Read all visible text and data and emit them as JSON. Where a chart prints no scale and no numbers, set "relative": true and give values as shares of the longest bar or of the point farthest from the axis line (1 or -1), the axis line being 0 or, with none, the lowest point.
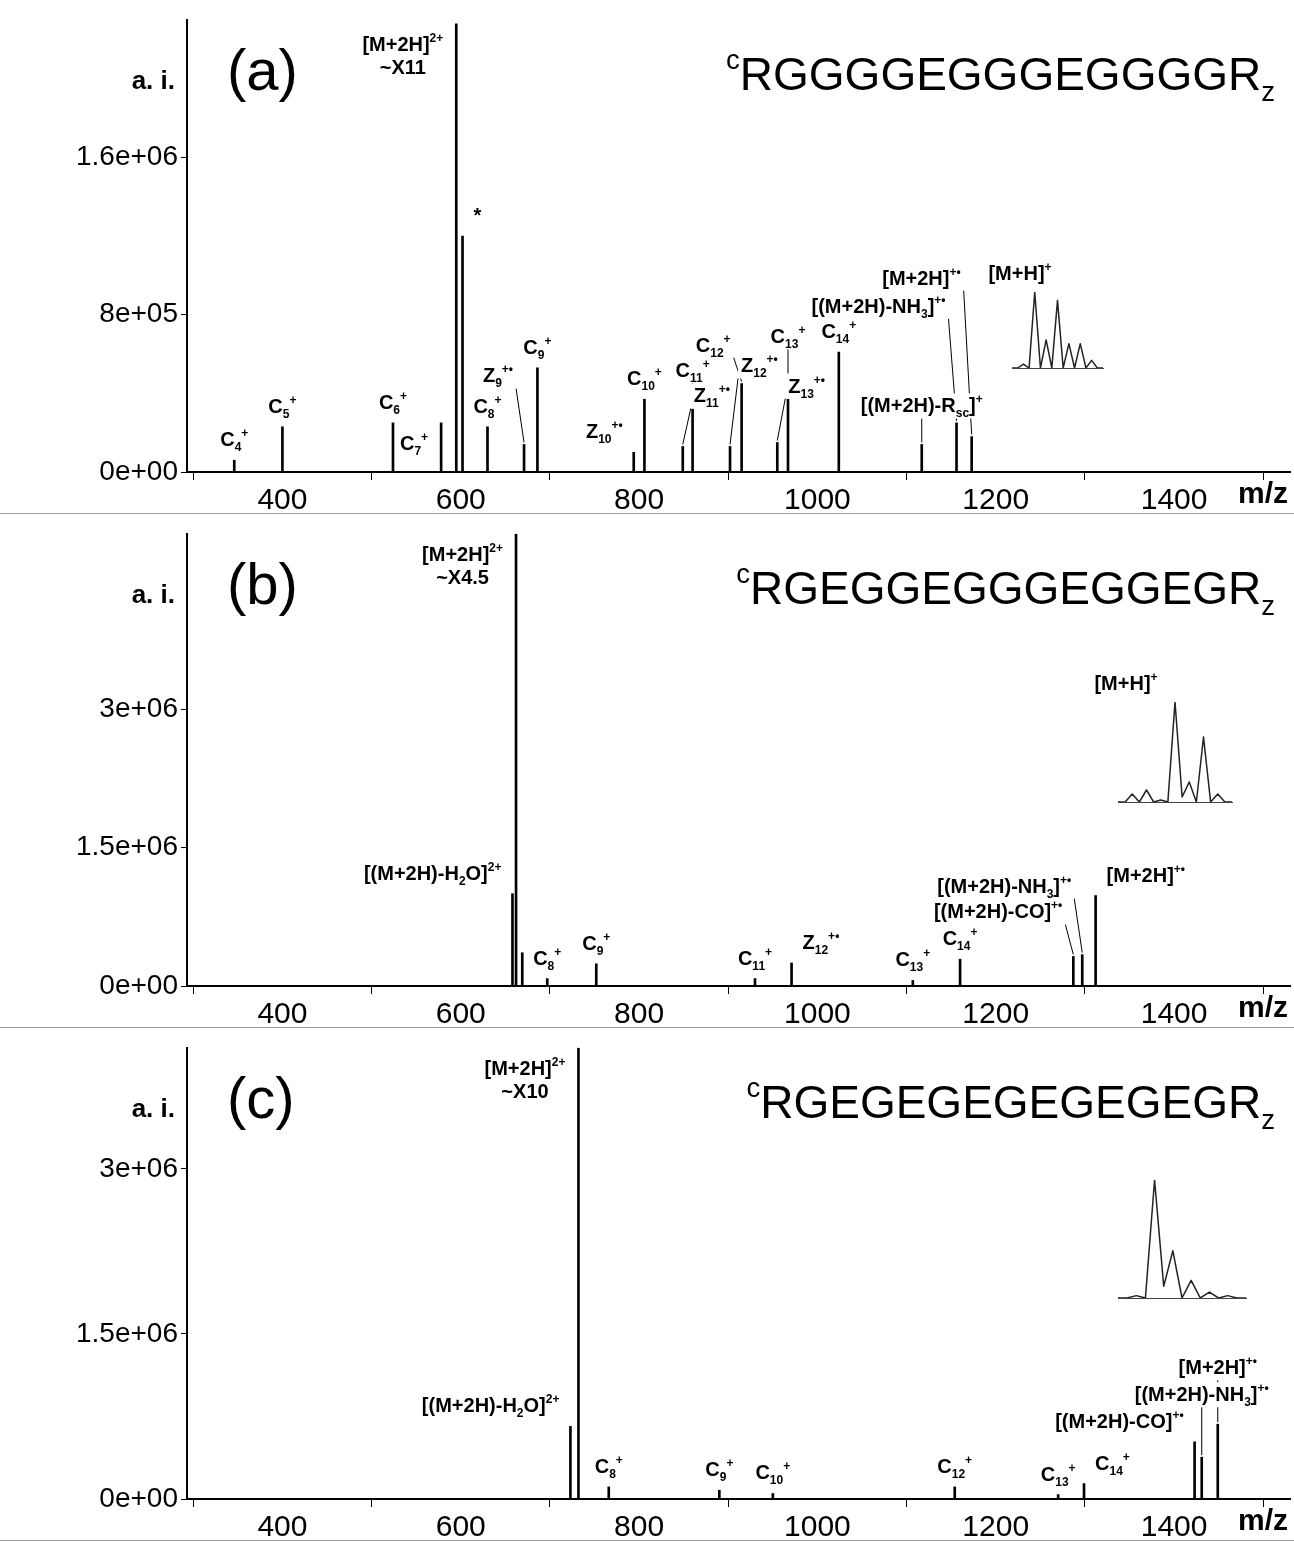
{
  "chart_data": [
    {
      "type": "bar",
      "title": "(a)",
      "subtitle": "$^{c}$RGGGGEGGGEGGGGR$_{z}$",
      "xlabel": "m/z",
      "ylabel": "a. i.",
      "color": "#000000",
      "grid": false,
      "x": [
        346,
        400,
        524,
        578,
        595,
        602,
        630,
        671,
        686,
        794,
        806,
        849,
        860,
        902,
        915,
        955,
        967,
        1024,
        1117,
        1156,
        1173
      ],
      "values": [
        60000,
        230000,
        250000,
        250000,
        2280000,
        1200000,
        230000,
        140000,
        530000,
        100000,
        370000,
        130000,
        320000,
        130000,
        450000,
        150000,
        370000,
        610000,
        140000,
        250000,
        180000
      ],
      "xlim": [
        293,
        1530
      ],
      "xticks": [
        400,
        600,
        800,
        1000,
        1200,
        1400
      ],
      "ylim": [
        0,
        2300000
      ],
      "yticks": [
        {
          "value": 0,
          "label": "0e+00"
        },
        {
          "value": 800000,
          "label": "8e+05"
        },
        {
          "value": 1600000,
          "label": "1.6e+06"
        }
      ],
      "annotations": [
        {
          "text": "C$_{4}$$^{+}$",
          "x": 346,
          "y": 60000
        },
        {
          "text": "C$_{5}$$^{+}$",
          "x": 400,
          "y": 230000
        },
        {
          "text": "C$_{6}$$^{+}$",
          "x": 524,
          "y": 250000
        },
        {
          "text": "C$_{7}$$^{+}$",
          "x": 578,
          "y": 250000
        },
        {
          "text": "[M+2H]$^{2+}$\n~X11",
          "x": 595,
          "y": 2280000
        },
        {
          "text": "*",
          "x": 602,
          "y": 1200000
        },
        {
          "text": "C$_{8}$$^{+}$",
          "x": 630,
          "y": 230000
        },
        {
          "text": "Z$_{9}$$^{+•}$",
          "x": 671,
          "y": 140000
        },
        {
          "text": "C$_{9}$$^{+}$",
          "x": 686,
          "y": 530000
        },
        {
          "text": "Z$_{10}$$^{+•}$",
          "x": 794,
          "y": 100000
        },
        {
          "text": "C$_{10}$$^{+}$",
          "x": 806,
          "y": 370000
        },
        {
          "text": "Z$_{11}$$^{+•}$",
          "x": 849,
          "y": 130000
        },
        {
          "text": "C$_{11}$$^{+}$",
          "x": 860,
          "y": 320000
        },
        {
          "text": "Z$_{12}$$^{+•}$",
          "x": 902,
          "y": 130000
        },
        {
          "text": "C$_{12}$$^{+}$",
          "x": 915,
          "y": 450000
        },
        {
          "text": "Z$_{13}$$^{+•}$",
          "x": 955,
          "y": 150000
        },
        {
          "text": "C$_{13}$$^{+}$",
          "x": 967,
          "y": 370000
        },
        {
          "text": "C$_{14}$$^{+}$",
          "x": 1024,
          "y": 610000
        },
        {
          "text": "[(M+2H)-R$_{sc}$]$^{+}$",
          "x": 1117,
          "y": 140000
        },
        {
          "text": "[(M+2H)-NH$_{3}$]$^{+•}$",
          "x": 1156,
          "y": 250000
        },
        {
          "text": "[M+2H]$^{+•}$",
          "x": 1173,
          "y": 180000
        },
        "[M+H]$^{+}$"
      ]
    },
    {
      "type": "bar",
      "title": "(b)",
      "subtitle": "$^{c}$RGEGGEGGGEGGEGR$_{z}$",
      "xlabel": "m/z",
      "ylabel": "a. i.",
      "color": "#000000",
      "grid": false,
      "x": [
        658,
        662,
        669,
        697,
        752,
        930,
        971,
        1107,
        1160,
        1287,
        1297,
        1312
      ],
      "values": [
        1000000,
        4900000,
        360000,
        80000,
        240000,
        80000,
        250000,
        60000,
        290000,
        320000,
        340000,
        980000
      ],
      "xlim": [
        293,
        1530
      ],
      "xticks": [
        400,
        600,
        800,
        1000,
        1200,
        1400
      ],
      "ylim": [
        0,
        4900000
      ],
      "yticks": [
        {
          "value": 0,
          "label": "0e+00"
        },
        {
          "value": 1500000,
          "label": "1.5e+06"
        },
        {
          "value": 3000000,
          "label": "3e+06"
        }
      ],
      "annotations": [
        {
          "text": "[(M+2H)-H$_{2}$O]$^{2+}$",
          "x": 658,
          "y": 1000000
        },
        {
          "text": "[M+2H]$^{2+}$\n~X4.5",
          "x": 662,
          "y": 4900000
        },
        {
          "text": "C$_{8}$$^{+}$",
          "x": 697,
          "y": 80000
        },
        {
          "text": "C$_{9}$$^{+}$",
          "x": 752,
          "y": 240000
        },
        {
          "text": "C$_{11}$$^{+}$",
          "x": 930,
          "y": 80000
        },
        {
          "text": "Z$_{12}$$^{+•}$",
          "x": 971,
          "y": 250000
        },
        {
          "text": "C$_{13}$$^{+}$",
          "x": 1107,
          "y": 60000
        },
        {
          "text": "C$_{14}$$^{+}$",
          "x": 1160,
          "y": 290000
        },
        {
          "text": "[(M+2H)-CO]$^{+•}$",
          "x": 1287,
          "y": 320000
        },
        {
          "text": "[(M+2H)-NH$_{3}$]$^{+•}$",
          "x": 1297,
          "y": 340000
        },
        {
          "text": "[M+2H]$^{+•}$",
          "x": 1312,
          "y": 980000
        },
        "[M+H]$^{+}$"
      ]
    },
    {
      "type": "bar",
      "title": "(c)",
      "subtitle": "$^{c}$RGEGEGEGEGEGEGR$_{z}$",
      "xlabel": "m/z",
      "ylabel": "a. i.",
      "color": "#000000",
      "grid": false,
      "x": [
        723,
        732,
        766,
        890,
        950,
        1154,
        1270,
        1299,
        1423,
        1431,
        1449
      ],
      "values": [
        660000,
        4100000,
        110000,
        80000,
        50000,
        110000,
        40000,
        140000,
        520000,
        380000,
        680000
      ],
      "xlim": [
        293,
        1530
      ],
      "xticks": [
        400,
        600,
        800,
        1000,
        1200,
        1400
      ],
      "ylim": [
        0,
        4100000
      ],
      "yticks": [
        {
          "value": 0,
          "label": "0e+00"
        },
        {
          "value": 1500000,
          "label": "1.5e+06"
        },
        {
          "value": 3000000,
          "label": "3e+06"
        }
      ],
      "annotations": [
        {
          "text": "[(M+2H)-H$_{2}$O]$^{2+}$",
          "x": 723,
          "y": 660000
        },
        {
          "text": "[M+2H]$^{2+}$\n~X10",
          "x": 732,
          "y": 4100000
        },
        {
          "text": "C$_{8}$$^{+}$",
          "x": 766,
          "y": 110000
        },
        {
          "text": "C$_{9}$$^{+}$",
          "x": 890,
          "y": 80000
        },
        {
          "text": "C$_{10}$$^{+}$",
          "x": 950,
          "y": 50000
        },
        {
          "text": "C$_{12}$$^{+}$",
          "x": 1154,
          "y": 110000
        },
        {
          "text": "C$_{13}$$^{+}$",
          "x": 1270,
          "y": 40000
        },
        {
          "text": "C$_{14}$$^{+}$",
          "x": 1299,
          "y": 140000
        },
        {
          "text": "[(M+2H)-CO]$^{+•}$",
          "x": 1423,
          "y": 520000
        },
        {
          "text": "[(M+2H)-NH$_{3}$]$^{+•}$",
          "x": 1431,
          "y": 380000
        },
        {
          "text": "[M+2H]$^{+•}$",
          "x": 1449,
          "y": 680000
        }
      ]
    },
    {
      "type": "line",
      "relative": true,
      "color": "#222222",
      "categories": [
        null,
        null,
        null,
        null,
        null,
        null,
        null,
        null,
        null,
        null,
        null,
        null,
        null,
        null,
        null,
        null,
        null
      ],
      "values": [
        0,
        0,
        0.05,
        0,
        1,
        0,
        0.37,
        0,
        0.89,
        0,
        0.32,
        0,
        0.32,
        0,
        0.1,
        0,
        0
      ]
    },
    {
      "type": "line",
      "relative": true,
      "color": "#222222",
      "categories": [
        null,
        null,
        null,
        null,
        null,
        null,
        null,
        null,
        null,
        null,
        null,
        null,
        null,
        null,
        null,
        null,
        null
      ],
      "values": [
        0,
        0,
        0.08,
        0,
        0.12,
        0,
        0.02,
        0,
        1,
        0.05,
        0.2,
        0,
        0.65,
        0,
        0.08,
        0,
        0
      ]
    },
    {
      "type": "line",
      "relative": true,
      "color": "#222222",
      "categories": [
        null,
        null,
        null,
        null,
        null,
        null,
        null,
        null,
        null,
        null,
        null,
        null,
        null,
        null,
        null
      ],
      "values": [
        0,
        0,
        0.02,
        0,
        1,
        0.1,
        0.4,
        0,
        0.15,
        0,
        0.05,
        0,
        0.02,
        0,
        0
      ]
    }
  ]
}
